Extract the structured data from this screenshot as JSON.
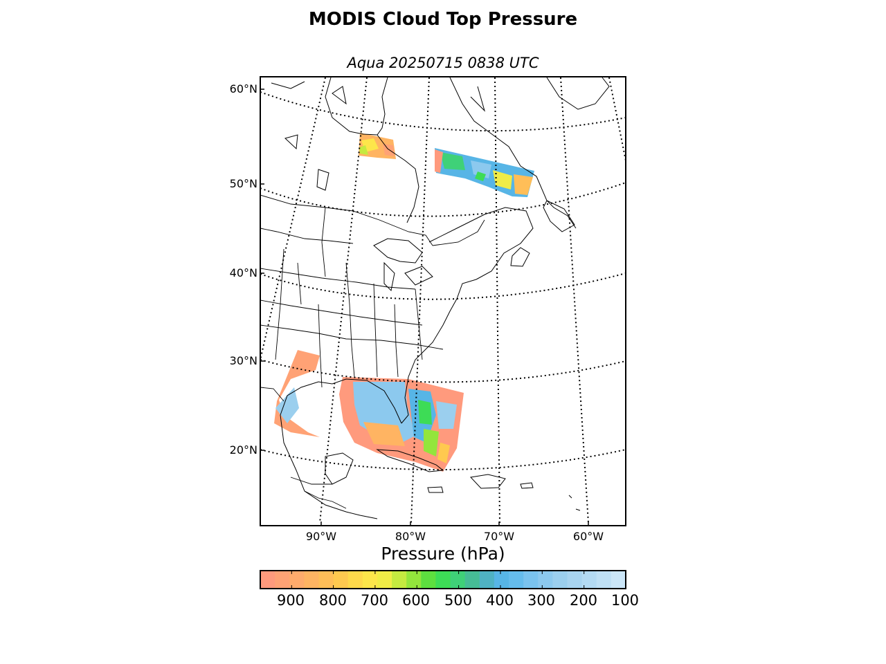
{
  "title": "MODIS Cloud Top Pressure",
  "subtitle": "Aqua 20250715 0838 UTC",
  "map": {
    "region": "Eastern North America, Gulf of Mexico and Caribbean",
    "lat_labels": [
      "60°N",
      "50°N",
      "40°N",
      "30°N",
      "20°N"
    ],
    "lon_labels": [
      "90°W",
      "80°W",
      "70°W",
      "60°W"
    ],
    "graticule_style": "dotted",
    "cloud_swaths": [
      {
        "name": "Hudson Bay area",
        "dominant_range_hPa": [
          600,
          900
        ]
      },
      {
        "name": "Quebec/Labrador",
        "dominant_range_hPa": [
          250,
          700
        ]
      },
      {
        "name": "Gulf of Mexico / Florida / Bahamas",
        "dominant_range_hPa": [
          200,
          950
        ]
      }
    ]
  },
  "colorbar": {
    "label": "Pressure (hPa)",
    "ticks": [
      "900",
      "800",
      "700",
      "600",
      "500",
      "400",
      "300",
      "200",
      "100"
    ],
    "range_hPa": [
      975,
      100
    ],
    "colors": [
      "#ff9a7d",
      "#ffa275",
      "#ffab6c",
      "#ffb462",
      "#ffbe58",
      "#ffc94f",
      "#ffd94b",
      "#fde64a",
      "#f0ec46",
      "#c5ea40",
      "#93e53c",
      "#5ddf3f",
      "#3ddc56",
      "#3fd178",
      "#46bc96",
      "#4fb2c3",
      "#57b5e6",
      "#65bcec",
      "#7ac3ee",
      "#8cc9ee",
      "#9bcfee",
      "#a8d4f0",
      "#b3daf3",
      "#bfe0f5",
      "#cbe6f8"
    ]
  }
}
